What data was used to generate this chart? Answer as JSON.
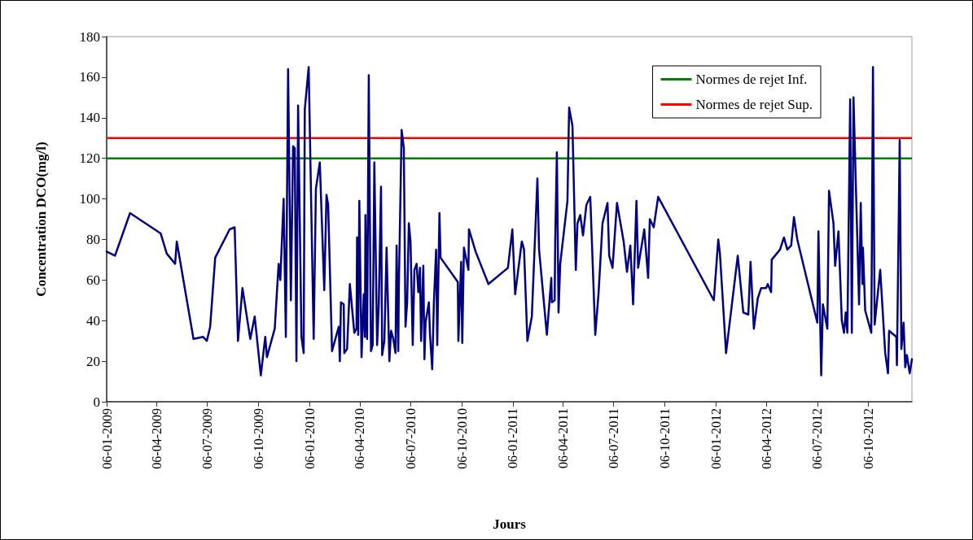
{
  "chart_data": {
    "type": "line",
    "xlabel": "Jours",
    "ylabel": "Concentration DCO(mg/l)",
    "xlim": [
      "2009-01-06",
      "2012-12-23"
    ],
    "xticks": [
      {
        "value": "2009-01-06",
        "label": "06-01-2009"
      },
      {
        "value": "2009-04-06",
        "label": "06-04-2009"
      },
      {
        "value": "2009-07-06",
        "label": "06-07-2009"
      },
      {
        "value": "2009-10-06",
        "label": "06-10-2009"
      },
      {
        "value": "2010-01-06",
        "label": "06-01-2010"
      },
      {
        "value": "2010-04-06",
        "label": "06-04-2010"
      },
      {
        "value": "2010-07-06",
        "label": "06-07-2010"
      },
      {
        "value": "2010-10-06",
        "label": "06-10-2010"
      },
      {
        "value": "2011-01-06",
        "label": "06-01-2011"
      },
      {
        "value": "2011-04-06",
        "label": "06-04-2011"
      },
      {
        "value": "2011-07-06",
        "label": "06-07-2011"
      },
      {
        "value": "2011-10-06",
        "label": "06-10-2011"
      },
      {
        "value": "2012-01-06",
        "label": "06-01-2012"
      },
      {
        "value": "2012-04-06",
        "label": "06-04-2012"
      },
      {
        "value": "2012-07-06",
        "label": "06-07-2012"
      },
      {
        "value": "2012-10-06",
        "label": "06-10-2012"
      }
    ],
    "ylim": [
      0,
      180
    ],
    "yticks": [
      0,
      20,
      40,
      60,
      80,
      100,
      120,
      140,
      160,
      180
    ],
    "grid": false,
    "legend": "top right",
    "marker": "none",
    "line_style": "solid",
    "ref_lines": [
      {
        "axis": "y",
        "value": 120,
        "label": "Normes de rejet Inf.",
        "color": "#008000"
      },
      {
        "axis": "y",
        "value": 130,
        "label": "Normes de rejet Sup.",
        "color": "#ff0000"
      }
    ],
    "series": [
      {
        "color": "#000080",
        "x": [
          "2009-01-06",
          "2009-01-21",
          "2009-02-17",
          "2009-04-13",
          "2009-04-24",
          "2009-05-09",
          "2009-05-12",
          "2009-06-11",
          "2009-06-28",
          "2009-07-05",
          "2009-07-11",
          "2009-07-20",
          "2009-08-15",
          "2009-08-24",
          "2009-08-30",
          "2009-09-07",
          "2009-09-21",
          "2009-09-29",
          "2009-10-10",
          "2009-10-18",
          "2009-10-21",
          "2009-11-04",
          "2009-11-11",
          "2009-11-14",
          "2009-11-20",
          "2009-11-24",
          "2009-11-28",
          "2009-12-03",
          "2009-12-07",
          "2009-12-10",
          "2009-12-13",
          "2009-12-16",
          "2009-12-22",
          "2009-12-26",
          "2009-12-28",
          "2010-01-04",
          "2010-01-13",
          "2010-01-17",
          "2010-01-24",
          "2010-02-01",
          "2010-02-05",
          "2010-02-08",
          "2010-02-15",
          "2010-02-27",
          "2010-03-01",
          "2010-03-03",
          "2010-03-08",
          "2010-03-09",
          "2010-03-14",
          "2010-03-19",
          "2010-03-27",
          "2010-03-31",
          "2010-04-01",
          "2010-04-03",
          "2010-04-05",
          "2010-04-09",
          "2010-04-13",
          "2010-04-15",
          "2010-04-16",
          "2010-04-19",
          "2010-04-22",
          "2010-04-25",
          "2010-04-26",
          "2010-04-29",
          "2010-05-02",
          "2010-05-07",
          "2010-05-10",
          "2010-05-14",
          "2010-05-16",
          "2010-05-20",
          "2010-05-24",
          "2010-05-29",
          "2010-06-01",
          "2010-06-05",
          "2010-06-09",
          "2010-06-11",
          "2010-06-14",
          "2010-06-15",
          "2010-06-20",
          "2010-06-24",
          "2010-06-27",
          "2010-06-30",
          "2010-07-03",
          "2010-07-06",
          "2010-07-10",
          "2010-07-13",
          "2010-07-17",
          "2010-07-20",
          "2010-07-23",
          "2010-07-25",
          "2010-07-29",
          "2010-07-31",
          "2010-08-02",
          "2010-08-08",
          "2010-08-10",
          "2010-08-14",
          "2010-08-17",
          "2010-08-21",
          "2010-08-23",
          "2010-08-27",
          "2010-08-29",
          "2010-09-29",
          "2010-09-30",
          "2010-10-05",
          "2010-10-07",
          "2010-10-10",
          "2010-10-18",
          "2010-10-19",
          "2010-10-31",
          "2010-11-23",
          "2010-12-28",
          "2011-01-05",
          "2011-01-10",
          "2011-01-22",
          "2011-01-26",
          "2011-02-01",
          "2011-02-09",
          "2011-02-19",
          "2011-02-22",
          "2011-03-08",
          "2011-03-16",
          "2011-03-17",
          "2011-03-22",
          "2011-03-23",
          "2011-03-26",
          "2011-03-29",
          "2011-04-01",
          "2011-04-14",
          "2011-04-17",
          "2011-04-23",
          "2011-04-29",
          "2011-05-02",
          "2011-05-07",
          "2011-05-12",
          "2011-05-18",
          "2011-05-25",
          "2011-06-03",
          "2011-06-09",
          "2011-06-16",
          "2011-06-25",
          "2011-06-28",
          "2011-07-04",
          "2011-07-12",
          "2011-07-24",
          "2011-07-30",
          "2011-08-05",
          "2011-08-10",
          "2011-08-16",
          "2011-08-19",
          "2011-08-30",
          "2011-09-06",
          "2011-09-09",
          "2011-09-16",
          "2011-09-24",
          "2012-01-02",
          "2012-01-10",
          "2012-01-13",
          "2012-01-24",
          "2012-02-14",
          "2012-02-24",
          "2012-03-04",
          "2012-03-08",
          "2012-03-14",
          "2012-03-21",
          "2012-03-27",
          "2012-04-05",
          "2012-04-08",
          "2012-04-14",
          "2012-04-15",
          "2012-04-30",
          "2012-05-07",
          "2012-05-13",
          "2012-05-20",
          "2012-05-25",
          "2012-05-31",
          "2012-07-06",
          "2012-07-08",
          "2012-07-13",
          "2012-07-16",
          "2012-07-24",
          "2012-07-27",
          "2012-08-04",
          "2012-08-07",
          "2012-08-13",
          "2012-08-19",
          "2012-08-23",
          "2012-08-26",
          "2012-08-29",
          "2012-09-03",
          "2012-09-06",
          "2012-09-09",
          "2012-09-19",
          "2012-09-22",
          "2012-09-25",
          "2012-09-26",
          "2012-09-30",
          "2012-10-11",
          "2012-10-14",
          "2012-10-17",
          "2012-10-27",
          "2012-11-05",
          "2012-11-10",
          "2012-11-12",
          "2012-11-25",
          "2012-11-26",
          "2012-12-01",
          "2012-12-04",
          "2012-12-08",
          "2012-12-11",
          "2012-12-14",
          "2012-12-19",
          "2012-12-23"
        ],
        "values": [
          74,
          72,
          93,
          83,
          73,
          68,
          79,
          31,
          32,
          30,
          37,
          71,
          85,
          86,
          30,
          56,
          31,
          42,
          13,
          32,
          22,
          36,
          68,
          60,
          100,
          32,
          164,
          50,
          126,
          125,
          20,
          146,
          32,
          24,
          144,
          165,
          31,
          105,
          118,
          55,
          102,
          97,
          25,
          37,
          20,
          49,
          48,
          24,
          26,
          58,
          34,
          36,
          81,
          33,
          99,
          22,
          53,
          32,
          92,
          31,
          161,
          55,
          25,
          28,
          118,
          28,
          48,
          106,
          23,
          30,
          76,
          20,
          35,
          31,
          24,
          77,
          25,
          56,
          134,
          125,
          37,
          49,
          88,
          79,
          28,
          65,
          68,
          54,
          66,
          30,
          67,
          21,
          39,
          49,
          33,
          16,
          49,
          75,
          28,
          93,
          71,
          59,
          30,
          69,
          29,
          76,
          65,
          85,
          74,
          58,
          66,
          85,
          53,
          79,
          75,
          30,
          42,
          110,
          75,
          33,
          61,
          49,
          50,
          79,
          123,
          44,
          68,
          99,
          145,
          136,
          65,
          88,
          92,
          82,
          97,
          101,
          33,
          54,
          88,
          98,
          72,
          66,
          98,
          79,
          64,
          77,
          48,
          99,
          66,
          85,
          61,
          90,
          86,
          101,
          50,
          80,
          73,
          24,
          72,
          44,
          43,
          69,
          36,
          51,
          56,
          56,
          58,
          54,
          70,
          75,
          81,
          75,
          77,
          91,
          80,
          39,
          84,
          13,
          48,
          36,
          104,
          88,
          67,
          84,
          40,
          34,
          44,
          34,
          149,
          34,
          150,
          48,
          98,
          58,
          76,
          45,
          34,
          165,
          38,
          65,
          24,
          14,
          35,
          32,
          18,
          129,
          26,
          39,
          17,
          23,
          14,
          21
        ]
      }
    ]
  }
}
